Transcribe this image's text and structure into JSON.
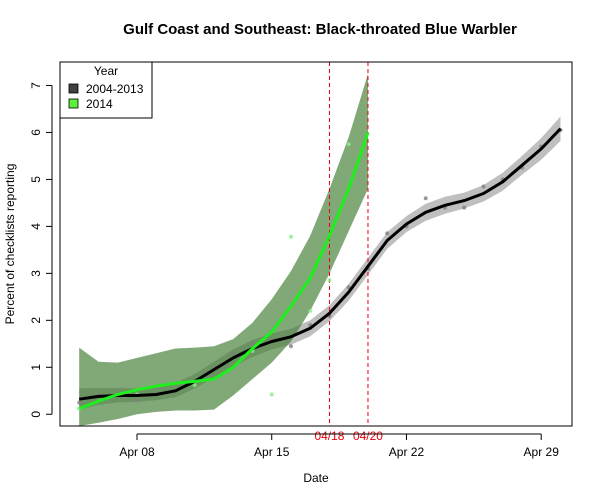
{
  "chart_data": {
    "type": "line",
    "title": "Gulf Coast and Southeast: Black-throated Blue Warbler",
    "xlabel": "Date",
    "ylabel": "Percent of checklists reporting",
    "xlim": [
      4,
      30.6
    ],
    "ylim": [
      -0.25,
      7.5
    ],
    "x_ticks": [
      {
        "x": 8,
        "label": "Apr 08"
      },
      {
        "x": 15,
        "label": "Apr 15"
      },
      {
        "x": 22,
        "label": "Apr 22"
      },
      {
        "x": 29,
        "label": "Apr 29"
      }
    ],
    "y_ticks": [
      0,
      1,
      2,
      3,
      4,
      5,
      6,
      7
    ],
    "legend": {
      "title": "Year",
      "position": "top-left",
      "entries": [
        {
          "label": "2004-2013",
          "color": "#404040"
        },
        {
          "label": "2014",
          "color": "#5cf03c"
        }
      ]
    },
    "reference_lines": [
      {
        "x": 18,
        "label": "04/18",
        "color": "#e8000b"
      },
      {
        "x": 20,
        "label": "04/20",
        "color": "#e8000b"
      }
    ],
    "series": [
      {
        "name": "2004-2013",
        "color": "#000000",
        "band_color": "#aaaaaa",
        "x": [
          5,
          6,
          7,
          8,
          9,
          10,
          11,
          12,
          13,
          14,
          15,
          16,
          17,
          18,
          19,
          20,
          21,
          22,
          23,
          24,
          25,
          26,
          27,
          28,
          29,
          30
        ],
        "y": [
          0.32,
          0.38,
          0.4,
          0.4,
          0.42,
          0.5,
          0.7,
          0.95,
          1.2,
          1.4,
          1.55,
          1.65,
          1.83,
          2.15,
          2.6,
          3.15,
          3.7,
          4.05,
          4.3,
          4.45,
          4.55,
          4.7,
          4.95,
          5.3,
          5.65,
          6.08
        ],
        "lower": [
          0.1,
          0.2,
          0.25,
          0.27,
          0.3,
          0.36,
          0.55,
          0.78,
          1.02,
          1.22,
          1.38,
          1.48,
          1.66,
          1.98,
          2.42,
          2.97,
          3.52,
          3.88,
          4.12,
          4.27,
          4.38,
          4.53,
          4.76,
          5.1,
          5.42,
          5.82
        ],
        "upper": [
          0.55,
          0.56,
          0.56,
          0.55,
          0.56,
          0.66,
          0.86,
          1.12,
          1.38,
          1.58,
          1.72,
          1.82,
          2.0,
          2.32,
          2.78,
          3.33,
          3.88,
          4.22,
          4.48,
          4.63,
          4.72,
          4.88,
          5.14,
          5.5,
          5.88,
          6.34
        ],
        "points_x": [
          5,
          6,
          7,
          8,
          9,
          10,
          11,
          12,
          13,
          14,
          15,
          16,
          17,
          18,
          19,
          20,
          21,
          22,
          23,
          24,
          25,
          26,
          27,
          28,
          29,
          30
        ],
        "points_y": [
          0.25,
          0.4,
          0.45,
          0.3,
          0.55,
          0.5,
          0.7,
          1.0,
          1.3,
          1.5,
          1.6,
          1.45,
          1.9,
          2.1,
          2.7,
          3.1,
          3.85,
          4.0,
          4.6,
          4.4,
          4.4,
          4.85,
          5.0,
          5.25,
          5.7,
          6.05
        ]
      },
      {
        "name": "2014",
        "color": "#1ef01e",
        "band_color": "#3d7a2e",
        "x": [
          5,
          6,
          7,
          8,
          9,
          10,
          11,
          12,
          13,
          14,
          15,
          16,
          17,
          18,
          19,
          20
        ],
        "y": [
          0.12,
          0.28,
          0.42,
          0.52,
          0.6,
          0.66,
          0.7,
          0.75,
          1.0,
          1.4,
          1.75,
          2.3,
          2.9,
          3.8,
          4.8,
          6.0
        ],
        "lower": [
          -0.25,
          -0.18,
          -0.1,
          0.0,
          0.05,
          0.08,
          0.08,
          0.1,
          0.4,
          0.75,
          1.1,
          1.55,
          2.2,
          3.0,
          3.9,
          4.8
        ],
        "upper": [
          1.42,
          1.12,
          1.1,
          1.2,
          1.3,
          1.4,
          1.42,
          1.45,
          1.6,
          1.95,
          2.45,
          3.05,
          3.8,
          4.8,
          5.9,
          7.25
        ],
        "points_x": [
          5,
          8,
          11,
          14,
          15,
          16,
          17,
          18,
          19
        ],
        "points_y": [
          0.12,
          0.42,
          0.62,
          1.35,
          0.42,
          3.78,
          2.2,
          2.85,
          5.75
        ]
      }
    ]
  }
}
